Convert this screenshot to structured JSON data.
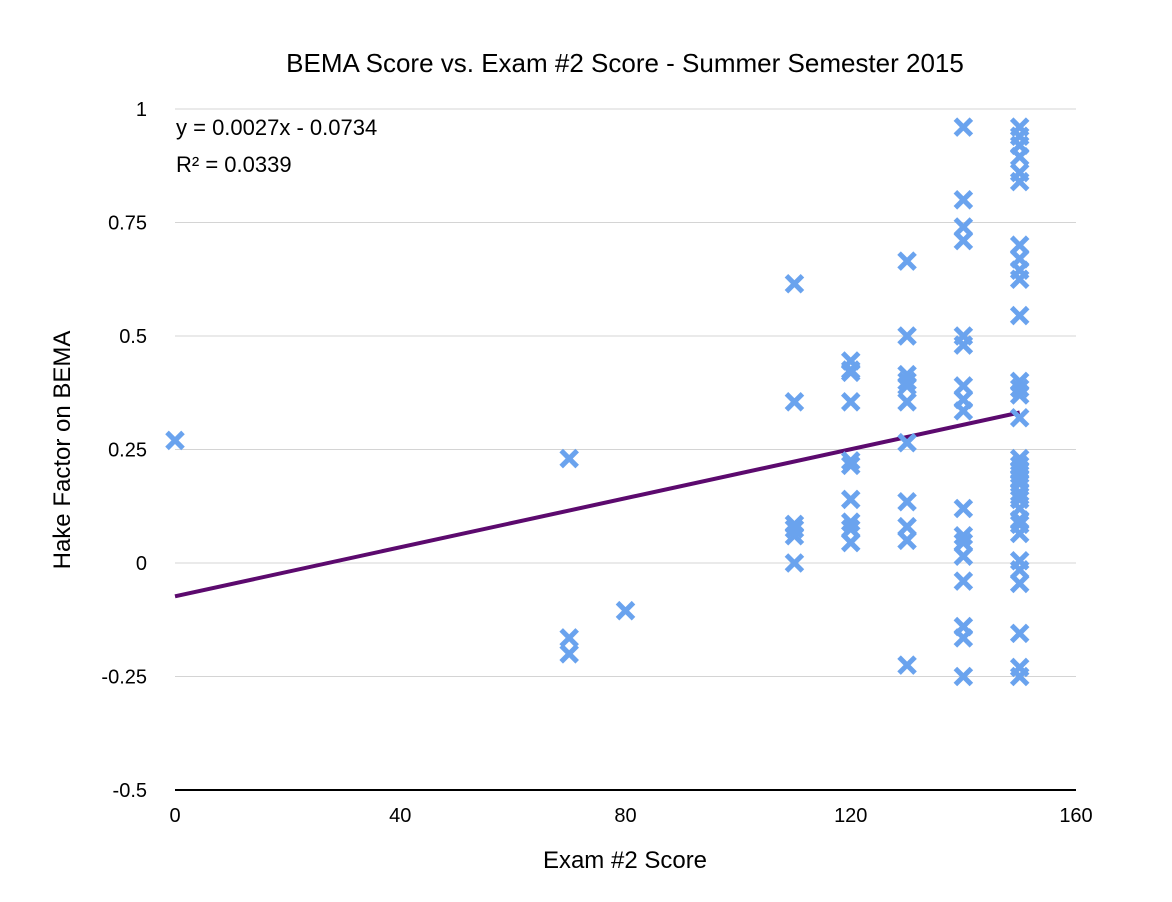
{
  "chart_data": {
    "type": "scatter",
    "title": "BEMA Score vs. Exam #2 Score - Summer Semester 2015",
    "xlabel": "Exam #2 Score",
    "ylabel": "Hake Factor on BEMA",
    "xlim": [
      0,
      160
    ],
    "ylim": [
      -0.5,
      1
    ],
    "xticks": [
      0,
      40,
      80,
      120,
      160
    ],
    "yticks": [
      -0.5,
      -0.25,
      0,
      0.25,
      0.5,
      0.75,
      1
    ],
    "xtick_labels": [
      "0",
      "40",
      "80",
      "120",
      "160"
    ],
    "ytick_labels": [
      "-0.5",
      "-0.25",
      "0",
      "0.25",
      "0.5",
      "0.75",
      "1"
    ],
    "grid": true,
    "marker": "x",
    "marker_color": "#6aa3ee",
    "points": [
      [
        0,
        0.27
      ],
      [
        70,
        0.23
      ],
      [
        70,
        -0.165
      ],
      [
        70,
        -0.2
      ],
      [
        80,
        -0.105
      ],
      [
        110,
        0.615
      ],
      [
        110,
        0.355
      ],
      [
        110,
        0.085
      ],
      [
        110,
        0.075
      ],
      [
        110,
        0.06
      ],
      [
        110,
        0.0
      ],
      [
        120,
        0.445
      ],
      [
        120,
        0.425
      ],
      [
        120,
        0.42
      ],
      [
        120,
        0.355
      ],
      [
        120,
        0.225
      ],
      [
        120,
        0.215
      ],
      [
        120,
        0.14
      ],
      [
        120,
        0.09
      ],
      [
        120,
        0.075
      ],
      [
        120,
        0.045
      ],
      [
        130,
        0.665
      ],
      [
        130,
        0.5
      ],
      [
        130,
        0.415
      ],
      [
        130,
        0.4
      ],
      [
        130,
        0.39
      ],
      [
        130,
        0.355
      ],
      [
        130,
        0.265
      ],
      [
        130,
        0.135
      ],
      [
        130,
        0.08
      ],
      [
        130,
        0.05
      ],
      [
        130,
        -0.225
      ],
      [
        140,
        0.96
      ],
      [
        140,
        0.8
      ],
      [
        140,
        0.74
      ],
      [
        140,
        0.71
      ],
      [
        140,
        0.5
      ],
      [
        140,
        0.48
      ],
      [
        140,
        0.39
      ],
      [
        140,
        0.36
      ],
      [
        140,
        0.335
      ],
      [
        140,
        0.12
      ],
      [
        140,
        0.06
      ],
      [
        140,
        0.045
      ],
      [
        140,
        0.015
      ],
      [
        140,
        -0.04
      ],
      [
        140,
        -0.14
      ],
      [
        140,
        -0.165
      ],
      [
        140,
        -0.25
      ],
      [
        150,
        0.96
      ],
      [
        150,
        0.94
      ],
      [
        150,
        0.92
      ],
      [
        150,
        0.895
      ],
      [
        150,
        0.86
      ],
      [
        150,
        0.84
      ],
      [
        150,
        0.7
      ],
      [
        150,
        0.67
      ],
      [
        150,
        0.645
      ],
      [
        150,
        0.625
      ],
      [
        150,
        0.545
      ],
      [
        150,
        0.4
      ],
      [
        150,
        0.385
      ],
      [
        150,
        0.37
      ],
      [
        150,
        0.32
      ],
      [
        150,
        0.23
      ],
      [
        150,
        0.215
      ],
      [
        150,
        0.205
      ],
      [
        150,
        0.195
      ],
      [
        150,
        0.185
      ],
      [
        150,
        0.175
      ],
      [
        150,
        0.155
      ],
      [
        150,
        0.14
      ],
      [
        150,
        0.12
      ],
      [
        150,
        0.095
      ],
      [
        150,
        0.085
      ],
      [
        150,
        0.065
      ],
      [
        150,
        0.005
      ],
      [
        150,
        -0.015
      ],
      [
        150,
        -0.045
      ],
      [
        150,
        -0.155
      ],
      [
        150,
        -0.23
      ],
      [
        150,
        -0.25
      ]
    ],
    "trendline": {
      "slope": 0.0027,
      "intercept": -0.0734,
      "x_range": [
        0,
        150
      ],
      "color": "#5c0a6e",
      "equation": "y = 0.0027x - 0.0734",
      "r_squared": "R² = 0.0339"
    }
  }
}
